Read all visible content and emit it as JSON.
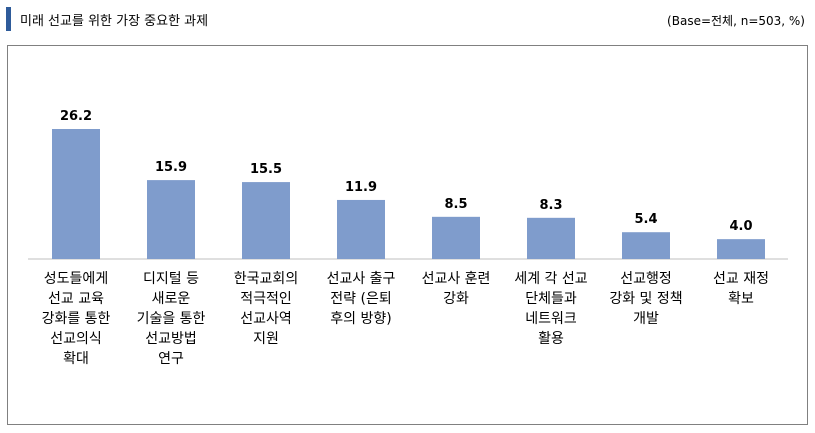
{
  "header": {
    "title": "미래 선교를 위한 가장 중요한 과제",
    "base_note": "(Base=전체, n=503, %)",
    "accent_color": "#2e5b9a"
  },
  "chart_data": {
    "type": "bar",
    "categories": [
      [
        "성도들에게",
        "선교 교육",
        "강화를 통한",
        "선교의식",
        "확대"
      ],
      [
        "디지털 등",
        "새로운",
        "기술을 통한",
        "선교방법",
        "연구"
      ],
      [
        "한국교회의",
        "적극적인",
        "선교사역",
        "지원"
      ],
      [
        "선교사 출구",
        "전략 (은퇴",
        "후의 방향)"
      ],
      [
        "선교사 훈련",
        "강화"
      ],
      [
        "세계 각 선교",
        "단체들과",
        "네트워크",
        "활용"
      ],
      [
        "선교행정",
        "강화 및 정책",
        "개발"
      ],
      [
        "선교 재정",
        "확보"
      ]
    ],
    "values": [
      26.2,
      15.9,
      15.5,
      11.9,
      8.5,
      8.3,
      5.4,
      4.0
    ],
    "value_labels": [
      "26.2",
      "15.9",
      "15.5",
      "11.9",
      "8.5",
      "8.3",
      "5.4",
      "4.0"
    ],
    "bar_color": "#7f9ccc",
    "ylim": [
      0,
      30
    ],
    "grid": false,
    "legend": "none",
    "title": "",
    "xlabel": "",
    "ylabel": ""
  }
}
